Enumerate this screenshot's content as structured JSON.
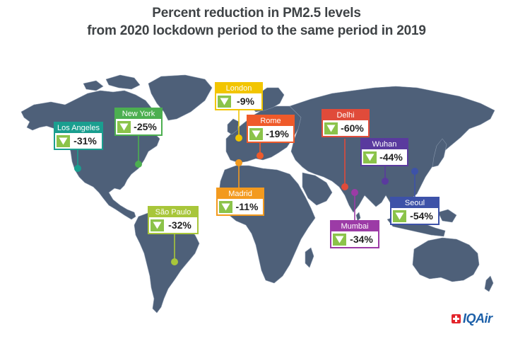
{
  "title": {
    "line1": "Percent reduction in PM2.5 levels",
    "line2": "from 2020 lockdown period to the same period in 2019"
  },
  "map": {
    "land_color": "#4e6079",
    "arrow_icon": "down-arrow-icon"
  },
  "cities": [
    {
      "id": "los-angeles",
      "name": "Los Angeles",
      "value": "-31%",
      "color": "#1a9e8f"
    },
    {
      "id": "new-york",
      "name": "New York",
      "value": "-25%",
      "color": "#4caf50"
    },
    {
      "id": "london",
      "name": "London",
      "value": "-9%",
      "color": "#f2c500"
    },
    {
      "id": "rome",
      "name": "Rome",
      "value": "-19%",
      "color": "#ef5a2a"
    },
    {
      "id": "madrid",
      "name": "Madrid",
      "value": "-11%",
      "color": "#f39a1e"
    },
    {
      "id": "delhi",
      "name": "Delhi",
      "value": "-60%",
      "color": "#e04b3a"
    },
    {
      "id": "wuhan",
      "name": "Wuhan",
      "value": "-44%",
      "color": "#5a3a9e"
    },
    {
      "id": "seoul",
      "name": "Seoul",
      "value": "-54%",
      "color": "#3d52a8"
    },
    {
      "id": "mumbai",
      "name": "Mumbai",
      "value": "-34%",
      "color": "#9c3ba6"
    },
    {
      "id": "sao-paulo",
      "name": "São Paulo",
      "value": "-32%",
      "color": "#a8c63a"
    }
  ],
  "logo": {
    "brand": "IQAir",
    "icon": "swiss-cross-icon",
    "color": "#1b5fa8"
  }
}
